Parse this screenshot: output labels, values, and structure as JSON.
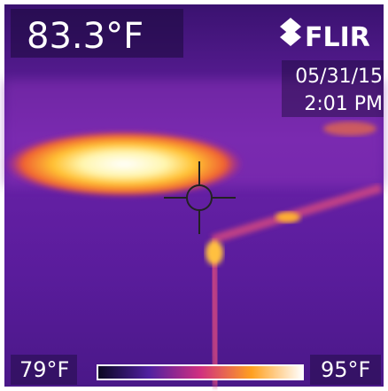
{
  "reading": {
    "temperature": "83.3°F"
  },
  "brand": {
    "logo": "FLIR"
  },
  "timestamp": {
    "date": "05/31/15",
    "time": "2:01 PM"
  },
  "scale": {
    "min": "79°F",
    "max": "95°F"
  }
}
